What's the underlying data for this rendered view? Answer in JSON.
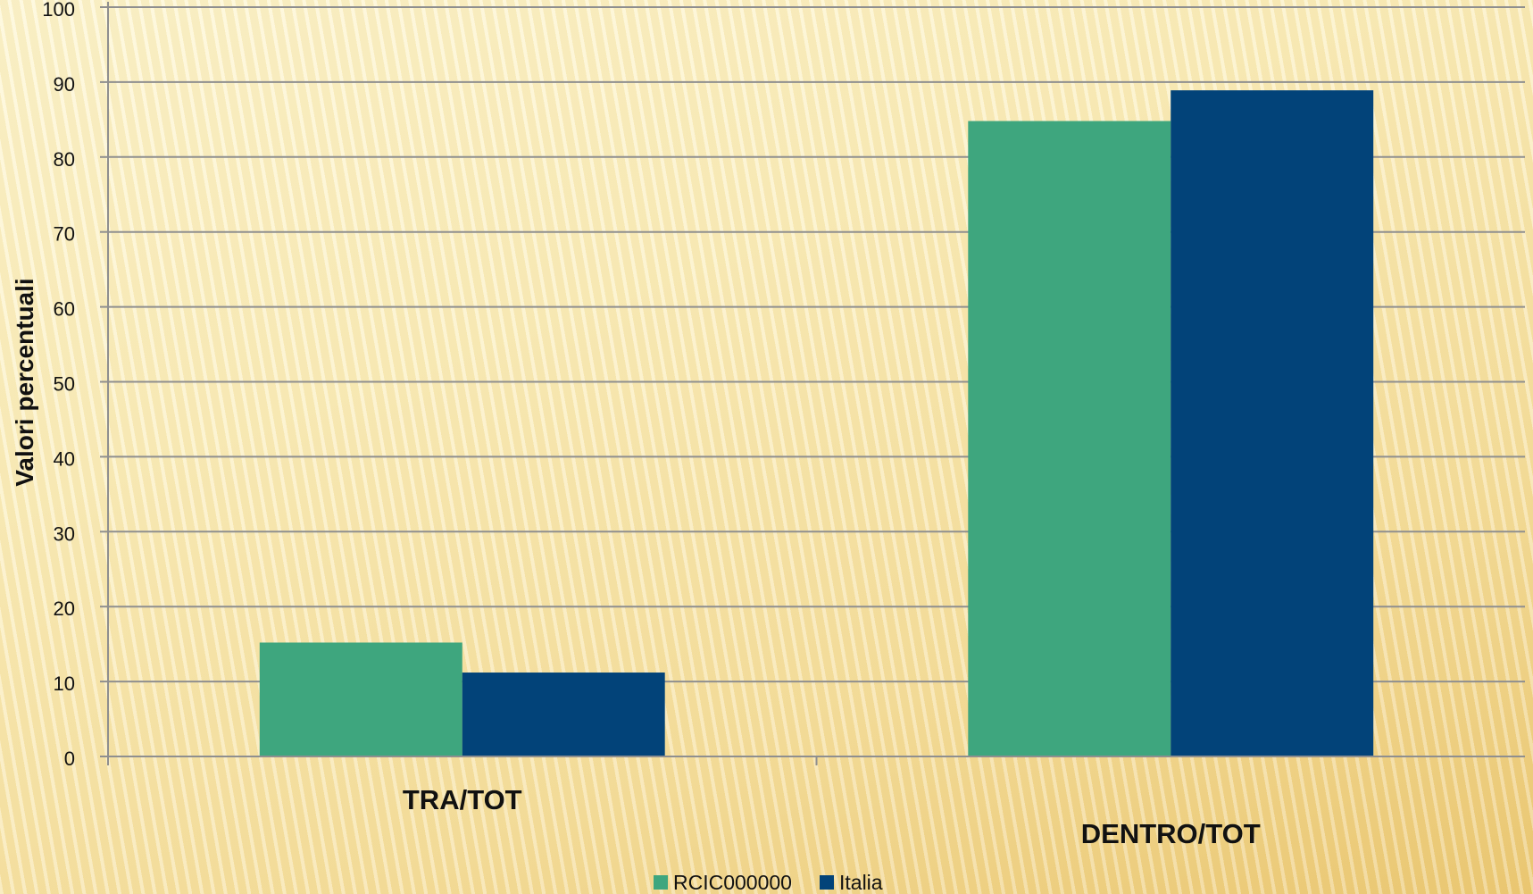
{
  "chart_data": {
    "type": "bar",
    "title": "",
    "xlabel": "",
    "ylabel": "Valori percentuali",
    "categories": [
      "TRA/TOT",
      "DENTRO/TOT"
    ],
    "series": [
      {
        "name": "RCIC000000",
        "values": [
          15.2,
          84.8
        ],
        "color": "#3ea67e"
      },
      {
        "name": "Italia",
        "values": [
          11.2,
          88.9
        ],
        "color": "#024379"
      }
    ],
    "ylim": [
      0,
      100
    ],
    "yticks": [
      0,
      10,
      20,
      30,
      40,
      50,
      60,
      70,
      80,
      90,
      100
    ],
    "grid": true,
    "legend_position": "bottom"
  },
  "colors": {
    "gridline": "#8f8f8f",
    "axis": "#8f8f8f"
  }
}
